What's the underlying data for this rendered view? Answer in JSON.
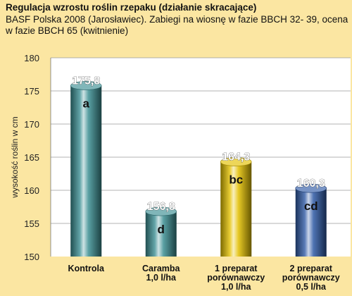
{
  "chart_data": {
    "type": "bar",
    "title": "Regulacja wzrostu roślin rzepaku (działanie skracające)",
    "subtitle": "BASF Polska 2008 (Jarosławiec). Zabiegi na wiosnę w fazie BBCH 32- 39, ocena w fazie BBCH 65 (kwitnienie)",
    "ylabel": "wysokość roślin w cm",
    "xlabel": "",
    "ylim": [
      150,
      180
    ],
    "yticks": [
      150,
      155,
      160,
      165,
      170,
      175,
      180
    ],
    "grid": true,
    "categories": [
      [
        "Kontrola"
      ],
      [
        "Caramba",
        "1,0 l/ha"
      ],
      [
        "1 preparat",
        "porównawczy",
        "1,0 l/ha"
      ],
      [
        "2 preparat",
        "porównawczy",
        "0,5 l/ha"
      ]
    ],
    "values": [
      175.8,
      156.8,
      164.3,
      160.3
    ],
    "value_labels": [
      "175,8",
      "156,8",
      "164,3",
      "160,3"
    ],
    "group_labels": [
      "a",
      "d",
      "bc",
      "cd"
    ],
    "colors": [
      "#3c8f93",
      "#3c8f93",
      "#e3c000",
      "#2f5aa5"
    ]
  }
}
